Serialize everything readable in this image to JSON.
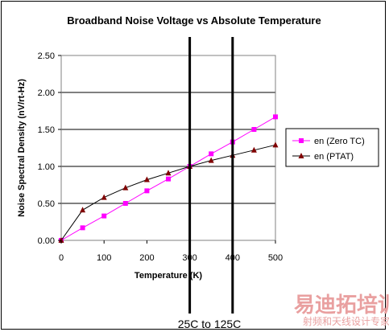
{
  "chart_data": {
    "type": "line",
    "title": "Broadband Noise Voltage vs Absolute Temperature",
    "xlabel": "Temperature (K)",
    "ylabel": "Noise Spectral Density (nV/rt-Hz)",
    "xlim": [
      0,
      500
    ],
    "ylim": [
      0,
      2.5
    ],
    "x_ticks": [
      "0",
      "100",
      "200",
      "300",
      "400",
      "500"
    ],
    "y_ticks": [
      "0.00",
      "0.50",
      "1.00",
      "1.50",
      "2.00",
      "2.50"
    ],
    "grid": "horizontal",
    "legend_position": "right",
    "series": [
      {
        "name": "en (Zero TC)",
        "color": "#ff00ff",
        "marker": "square",
        "x": [
          0,
          50,
          100,
          150,
          200,
          250,
          300,
          350,
          400,
          450,
          500
        ],
        "y": [
          0.0,
          0.17,
          0.33,
          0.5,
          0.67,
          0.83,
          1.0,
          1.17,
          1.33,
          1.5,
          1.67
        ]
      },
      {
        "name": "en (PTAT)",
        "color": "#800000",
        "marker": "triangle",
        "x": [
          0,
          50,
          100,
          150,
          200,
          250,
          300,
          350,
          400,
          450,
          500
        ],
        "y": [
          0.0,
          0.41,
          0.58,
          0.71,
          0.82,
          0.91,
          1.0,
          1.08,
          1.15,
          1.22,
          1.29
        ]
      }
    ],
    "vertical_markers": [
      300,
      400
    ],
    "annotation": "25C to 125C"
  },
  "watermark": {
    "main": "易迪拓培训",
    "sub": "射频和天线设计专家",
    "color": "#e9a0a0"
  }
}
